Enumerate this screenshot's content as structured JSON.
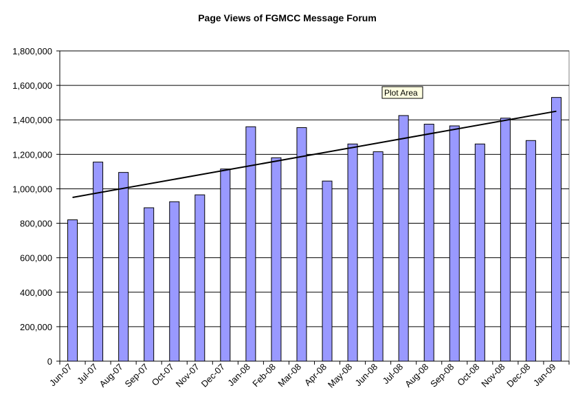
{
  "colors": {
    "bar_fill": "#9999ff",
    "bar_stroke": "#000000",
    "gridline": "#000000",
    "trendline": "#000000",
    "plot_background": "#ffffff"
  },
  "tooltip": {
    "text": "Plot Area"
  },
  "chart_data": {
    "type": "bar",
    "title": "Page Views of FGMCC Message Forum",
    "xlabel": "",
    "ylabel": "",
    "ylim": [
      0,
      1800000
    ],
    "y_ticks": [
      0,
      200000,
      400000,
      600000,
      800000,
      1000000,
      1200000,
      1400000,
      1600000,
      1800000
    ],
    "y_tick_labels": [
      "0",
      "200,000",
      "400,000",
      "600,000",
      "800,000",
      "1,000,000",
      "1,200,000",
      "1,400,000",
      "1,600,000",
      "1,800,000"
    ],
    "grid": true,
    "legend": "none",
    "categories": [
      "Jun-07",
      "Jul-07",
      "Aug-07",
      "Sep-07",
      "Oct-07",
      "Nov-07",
      "Dec-07",
      "Jan-08",
      "Feb-08",
      "Mar-08",
      "Apr-08",
      "May-08",
      "Jun-08",
      "Jul-08",
      "Aug-08",
      "Sep-08",
      "Oct-08",
      "Nov-08",
      "Dec-08",
      "Jan-09"
    ],
    "values": [
      820000,
      1155000,
      1095000,
      890000,
      925000,
      965000,
      1115000,
      1360000,
      1180000,
      1355000,
      1045000,
      1260000,
      1215000,
      1425000,
      1375000,
      1365000,
      1260000,
      1410000,
      1280000,
      1530000
    ],
    "trendline": {
      "type": "linear",
      "start_value": 950000,
      "end_value": 1450000
    }
  }
}
